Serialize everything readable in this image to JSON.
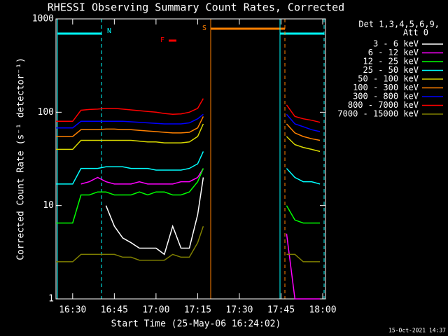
{
  "chart_data": {
    "type": "line",
    "title": "RHESSI Observing Summary Count Rates, Corrected",
    "x_label": "Start Time (25-May-06 16:24:02)",
    "y_label": "Corrected Count Rate (s⁻¹ detector⁻¹)",
    "legend_title": [
      "Det 1,3,4,5,6,9,",
      "Att 0"
    ],
    "footer": "15-Oct-2021 14:37",
    "annotations": [
      "N",
      "S",
      "F"
    ],
    "log_y": true,
    "ylim": [
      1,
      1000
    ],
    "yticks": [
      1,
      10,
      100,
      1000
    ],
    "xlim": [
      "16:24",
      "18:01"
    ],
    "xticks": [
      "16:30",
      "16:45",
      "17:00",
      "17:15",
      "17:30",
      "17:45",
      "18:00"
    ],
    "x": [
      "16:24",
      "16:27",
      "16:30",
      "16:33",
      "16:36",
      "16:39",
      "16:42",
      "16:45",
      "16:48",
      "16:51",
      "16:54",
      "16:57",
      "17:00",
      "17:03",
      "17:06",
      "17:09",
      "17:12",
      "17:15",
      "17:17",
      "17:30",
      "17:47",
      "17:50",
      "17:53",
      "17:56",
      "17:59"
    ],
    "series": [
      {
        "name": "3 - 6 keV",
        "color": "#ffffff",
        "values": [
          null,
          null,
          null,
          null,
          null,
          null,
          10,
          6,
          4.5,
          4,
          3.5,
          3.5,
          3.5,
          3,
          6,
          3.5,
          3.5,
          8,
          20,
          null,
          null,
          null,
          null,
          null,
          null
        ]
      },
      {
        "name": "6 - 12 keV",
        "color": "#ff00ff",
        "values": [
          null,
          null,
          null,
          17,
          18,
          20,
          18,
          17,
          17,
          17,
          18,
          17,
          17,
          17,
          17,
          18,
          18,
          20,
          25,
          null,
          5,
          1,
          1,
          1,
          1
        ]
      },
      {
        "name": "12 - 25 keV",
        "color": "#00ff00",
        "values": [
          6.5,
          6.5,
          6.5,
          13,
          13,
          14,
          14,
          13,
          13,
          13,
          14,
          13,
          14,
          14,
          13,
          13,
          14,
          18,
          25,
          null,
          10,
          7,
          6.5,
          6.5,
          6.5
        ]
      },
      {
        "name": "25 - 50 keV",
        "color": "#00ffff",
        "values": [
          17,
          17,
          17,
          25,
          25,
          25,
          26,
          26,
          26,
          25,
          25,
          25,
          24,
          24,
          24,
          24,
          25,
          28,
          38,
          null,
          25,
          20,
          18,
          18,
          17
        ]
      },
      {
        "name": "50 - 100 keV",
        "color": "#d8d800",
        "values": [
          40,
          40,
          40,
          50,
          50,
          50,
          50,
          50,
          50,
          50,
          49,
          48,
          48,
          47,
          47,
          47,
          48,
          55,
          75,
          null,
          55,
          45,
          42,
          40,
          38
        ]
      },
      {
        "name": "100 - 300 keV",
        "color": "#ff8000",
        "values": [
          55,
          55,
          55,
          65,
          65,
          65,
          66,
          66,
          65,
          65,
          64,
          63,
          62,
          61,
          60,
          60,
          61,
          68,
          90,
          null,
          75,
          60,
          55,
          52,
          50
        ]
      },
      {
        "name": "300 - 800 keV",
        "color": "#0000ff",
        "values": [
          68,
          68,
          68,
          80,
          80,
          80,
          80,
          80,
          80,
          79,
          78,
          77,
          76,
          75,
          75,
          75,
          77,
          85,
          95,
          null,
          95,
          75,
          70,
          65,
          62
        ]
      },
      {
        "name": "800 - 7000 keV",
        "color": "#ff0000",
        "values": [
          80,
          80,
          80,
          105,
          107,
          108,
          110,
          110,
          108,
          106,
          104,
          102,
          100,
          97,
          95,
          96,
          100,
          110,
          140,
          null,
          120,
          90,
          85,
          82,
          78
        ]
      },
      {
        "name": "7000 - 15000 keV",
        "color": "#808000",
        "values": [
          2.5,
          2.5,
          2.5,
          3,
          3,
          3,
          3,
          3,
          2.8,
          2.8,
          2.6,
          2.6,
          2.6,
          2.6,
          3,
          2.8,
          2.8,
          4,
          6,
          null,
          3,
          3,
          2.5,
          2.5,
          2.5
        ]
      }
    ]
  }
}
